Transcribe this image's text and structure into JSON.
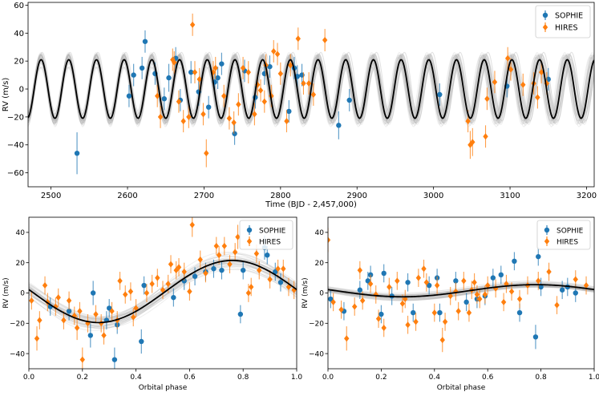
{
  "colors": {
    "sophie": "#1f77b4",
    "hires": "#ff7f0e",
    "model": "#000000",
    "samples": "#b0b0b0"
  },
  "chart_data": [
    {
      "type": "scatter",
      "panel": "time-series",
      "xlabel": "Time (BJD - 2,457,000)",
      "ylabel": "RV (m/s)",
      "xlim": [
        2470,
        3210
      ],
      "ylim": [
        -70,
        62
      ],
      "xticks": [
        "2500",
        "2600",
        "2700",
        "2800",
        "2900",
        "3000",
        "3100",
        "3200"
      ],
      "yticks": [
        "60",
        "40",
        "20",
        "0",
        "−20",
        "−40",
        "−60"
      ],
      "legend_position": "top-right",
      "model": {
        "amplitude": 21,
        "period": 36.2,
        "epoch": 2478
      },
      "series": [
        {
          "name": "SOPHIE",
          "marker": "circle",
          "x": [
            2534,
            2602,
            2608,
            2619,
            2623,
            2636,
            2648,
            2654,
            2663,
            2669,
            2683,
            2693,
            2706,
            2714,
            2718,
            2723,
            2740,
            2753,
            2767,
            2779,
            2786,
            2811,
            2818,
            2822,
            2828,
            2876,
            2890,
            3008,
            3096,
            3150
          ],
          "y": [
            -46,
            -5,
            10,
            15,
            34,
            11,
            -7,
            8,
            22,
            -8,
            12,
            -2,
            -13,
            5,
            8,
            18,
            -32,
            13,
            -6,
            11,
            16,
            -16,
            15,
            9,
            10,
            -26,
            -8,
            -4,
            2,
            7
          ],
          "err": [
            15,
            8,
            8,
            8,
            8,
            8,
            8,
            10,
            8,
            8,
            8,
            10,
            8,
            8,
            8,
            8,
            8,
            8,
            8,
            8,
            8,
            8,
            8,
            8,
            8,
            10,
            8,
            8,
            8,
            8
          ]
        },
        {
          "name": "HIRES",
          "marker": "diamond",
          "x": [
            2639,
            2643,
            2659,
            2661,
            2667,
            2673,
            2680,
            2685,
            2688,
            2694,
            2699,
            2703,
            2712,
            2715,
            2726,
            2733,
            2739,
            2745,
            2751,
            2758,
            2766,
            2770,
            2774,
            2779,
            2781,
            2788,
            2791,
            2796,
            2800,
            2808,
            2813,
            2823,
            2830,
            2837,
            2843,
            2858,
            3045,
            3048,
            3051,
            3068,
            3070,
            3080,
            3097,
            3101,
            3117,
            3131,
            3136,
            3141,
            3148
          ],
          "y": [
            -5,
            -20,
            21,
            19,
            -9,
            -23,
            -20,
            46,
            12,
            7,
            -18,
            -46,
            12,
            15,
            -5,
            -21,
            -24,
            -11,
            15,
            12,
            -18,
            3,
            -1,
            -9,
            17,
            -5,
            27,
            25,
            11,
            -23,
            17,
            36,
            4,
            4,
            -4,
            35,
            -23,
            -40,
            -38,
            -34,
            -7,
            5,
            22,
            14,
            3,
            4,
            -6,
            12,
            4
          ],
          "err": [
            8,
            8,
            8,
            8,
            8,
            8,
            8,
            8,
            8,
            8,
            8,
            10,
            8,
            8,
            8,
            8,
            8,
            8,
            8,
            8,
            8,
            8,
            8,
            8,
            8,
            8,
            8,
            8,
            8,
            8,
            8,
            8,
            8,
            8,
            8,
            8,
            8,
            10,
            10,
            8,
            8,
            8,
            8,
            8,
            8,
            8,
            8,
            8,
            8
          ]
        }
      ]
    },
    {
      "type": "scatter",
      "panel": "phase-b",
      "xlabel": "Orbital phase",
      "ylabel": "RV (m/s)",
      "xlim": [
        0.0,
        1.0
      ],
      "ylim": [
        -50,
        50
      ],
      "xticks": [
        "0.0",
        "0.2",
        "0.4",
        "0.6",
        "0.8",
        "1.0"
      ],
      "yticks": [
        "40",
        "20",
        "0",
        "−20",
        "−40"
      ],
      "legend_position": "top-right",
      "model": {
        "K": 20.5,
        "offset": 1,
        "peak_phase": 0.76
      },
      "series": [
        {
          "name": "SOPHIE",
          "marker": "circle",
          "x": [
            0.08,
            0.15,
            0.23,
            0.24,
            0.29,
            0.3,
            0.32,
            0.33,
            0.42,
            0.43,
            0.54,
            0.58,
            0.62,
            0.66,
            0.69,
            0.72,
            0.79,
            0.8,
            0.88,
            0.89,
            0.92,
            0.94
          ],
          "y": [
            -9,
            -12,
            -28,
            0,
            -18,
            -10,
            -44,
            -21,
            -32,
            5,
            -3,
            8,
            11,
            14,
            16,
            15,
            -14,
            15,
            30,
            25,
            14,
            7
          ],
          "err": [
            6,
            6,
            8,
            8,
            6,
            6,
            8,
            6,
            8,
            6,
            6,
            6,
            6,
            6,
            6,
            6,
            6,
            6,
            8,
            6,
            6,
            6
          ]
        },
        {
          "name": "HIRES",
          "marker": "diamond",
          "x": [
            0.01,
            0.03,
            0.04,
            0.06,
            0.07,
            0.1,
            0.11,
            0.13,
            0.15,
            0.17,
            0.18,
            0.19,
            0.2,
            0.22,
            0.25,
            0.27,
            0.28,
            0.31,
            0.33,
            0.34,
            0.36,
            0.38,
            0.39,
            0.4,
            0.44,
            0.46,
            0.48,
            0.5,
            0.52,
            0.53,
            0.55,
            0.56,
            0.58,
            0.6,
            0.61,
            0.64,
            0.66,
            0.7,
            0.71,
            0.73,
            0.75,
            0.77,
            0.78,
            0.82,
            0.83,
            0.85,
            0.86,
            0.9,
            0.93,
            0.95,
            0.97,
            0.99
          ],
          "y": [
            -5,
            -30,
            -18,
            5,
            -6,
            -9,
            -3,
            -18,
            -5,
            -15,
            -23,
            -12,
            -44,
            -20,
            -14,
            -20,
            -28,
            -12,
            -18,
            8,
            -1,
            1,
            -16,
            -10,
            0,
            6,
            10,
            2,
            6,
            19,
            15,
            17,
            14,
            1,
            45,
            22,
            13,
            31,
            25,
            31,
            19,
            27,
            37,
            0,
            4,
            26,
            15,
            9,
            16,
            16,
            4,
            2
          ],
          "err": [
            6,
            8,
            6,
            6,
            6,
            6,
            6,
            6,
            6,
            6,
            8,
            6,
            8,
            6,
            6,
            6,
            6,
            6,
            6,
            6,
            6,
            6,
            6,
            6,
            6,
            6,
            6,
            6,
            6,
            6,
            6,
            6,
            6,
            6,
            8,
            6,
            6,
            6,
            6,
            6,
            6,
            6,
            8,
            6,
            6,
            6,
            6,
            6,
            6,
            6,
            6,
            6
          ]
        }
      ]
    },
    {
      "type": "scatter",
      "panel": "phase-c",
      "xlabel": "Orbital phase",
      "ylabel": "RV (m/s)",
      "xlim": [
        0.0,
        1.0
      ],
      "ylim": [
        -50,
        50
      ],
      "xticks": [
        "0.0",
        "0.2",
        "0.4",
        "0.6",
        "0.8",
        "1.0"
      ],
      "yticks": [
        "40",
        "20",
        "0",
        "−20",
        "−40"
      ],
      "legend_position": "top-right",
      "model": {
        "K": 4,
        "offset": 1.5,
        "peak_phase": 0.78
      },
      "series": [
        {
          "name": "SOPHIE",
          "marker": "circle",
          "x": [
            0.01,
            0.06,
            0.12,
            0.15,
            0.16,
            0.2,
            0.21,
            0.24,
            0.3,
            0.32,
            0.38,
            0.41,
            0.42,
            0.48,
            0.52,
            0.56,
            0.59,
            0.62,
            0.65,
            0.7,
            0.72,
            0.78,
            0.79,
            0.8,
            0.88,
            0.9,
            0.93
          ],
          "y": [
            -4,
            -12,
            2,
            8,
            12,
            -14,
            13,
            -2,
            7,
            -13,
            5,
            10,
            -13,
            8,
            -6,
            -4,
            -2,
            10,
            12,
            21,
            -13,
            -29,
            24,
            4,
            2,
            4,
            0
          ],
          "err": [
            6,
            6,
            6,
            6,
            6,
            6,
            6,
            6,
            6,
            6,
            6,
            6,
            6,
            6,
            6,
            6,
            6,
            6,
            6,
            6,
            6,
            8,
            6,
            6,
            6,
            6,
            6
          ]
        },
        {
          "name": "HIRES",
          "marker": "diamond",
          "x": [
            0.0,
            0.02,
            0.05,
            0.07,
            0.1,
            0.12,
            0.13,
            0.16,
            0.18,
            0.19,
            0.21,
            0.23,
            0.26,
            0.28,
            0.29,
            0.3,
            0.33,
            0.34,
            0.36,
            0.37,
            0.4,
            0.41,
            0.43,
            0.44,
            0.46,
            0.48,
            0.49,
            0.51,
            0.53,
            0.54,
            0.55,
            0.56,
            0.57,
            0.59,
            0.6,
            0.63,
            0.66,
            0.67,
            0.69,
            0.72,
            0.75,
            0.79,
            0.83,
            0.86,
            0.93,
            0.97
          ],
          "y": [
            35,
            -6,
            -11,
            -30,
            -9,
            15,
            -5,
            6,
            -1,
            -17,
            -23,
            4,
            8,
            -7,
            -4,
            -21,
            -19,
            10,
            16,
            7,
            -13,
            5,
            -31,
            -19,
            -2,
            1,
            -12,
            8,
            -13,
            2,
            7,
            -1,
            -4,
            -1,
            5,
            3,
            -6,
            6,
            1,
            -4,
            5,
            8,
            14,
            -8,
            9,
            5
          ],
          "err": [
            8,
            6,
            6,
            8,
            6,
            6,
            6,
            6,
            6,
            6,
            6,
            6,
            6,
            6,
            6,
            6,
            6,
            6,
            6,
            6,
            6,
            6,
            8,
            6,
            6,
            6,
            6,
            6,
            6,
            6,
            6,
            6,
            6,
            6,
            6,
            6,
            6,
            6,
            6,
            6,
            6,
            6,
            6,
            6,
            6,
            6
          ]
        }
      ]
    }
  ]
}
